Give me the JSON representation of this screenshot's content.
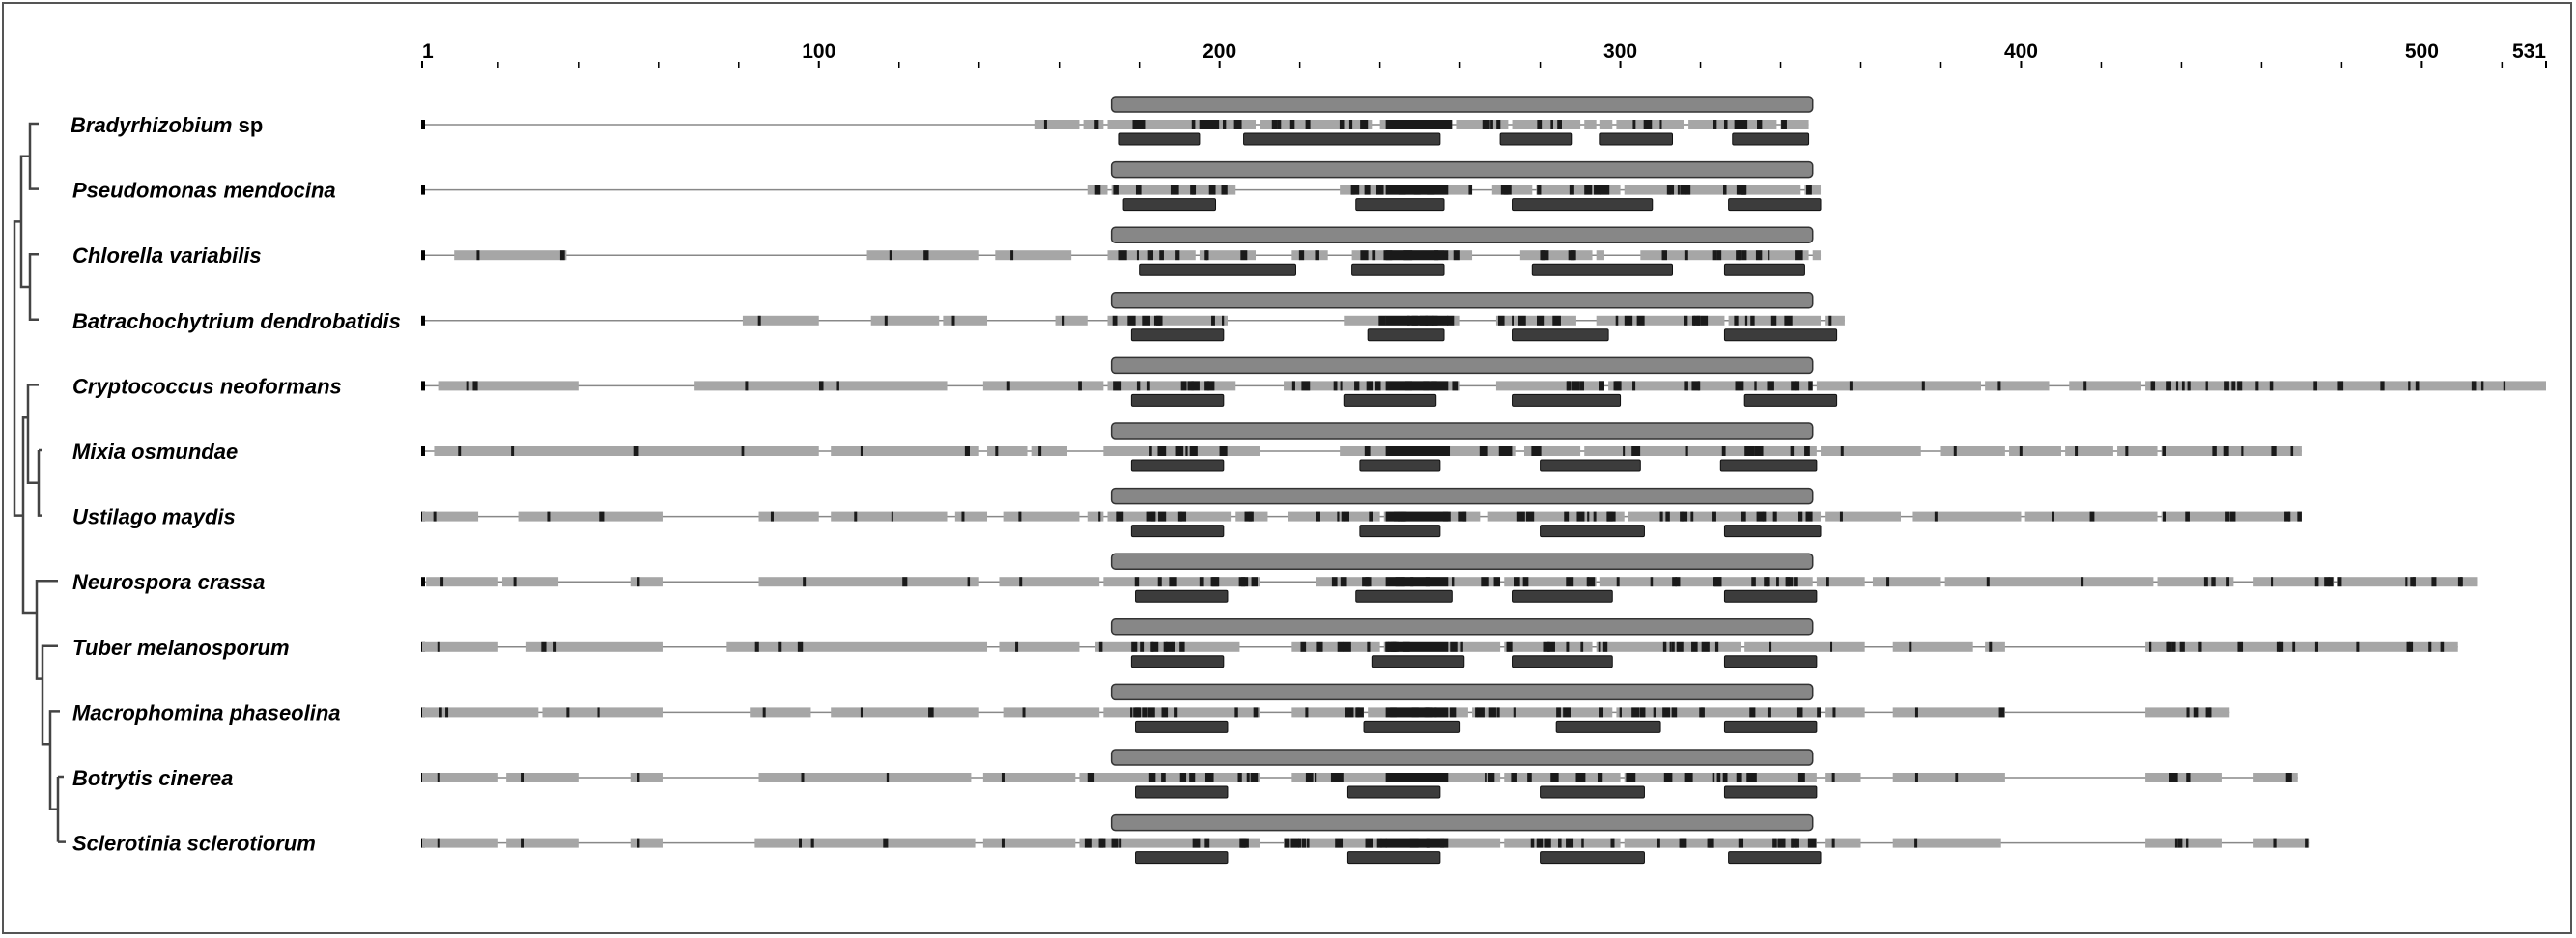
{
  "axis": {
    "ticks": [
      {
        "pos": 1,
        "label": "1"
      },
      {
        "pos": 100,
        "label": "100"
      },
      {
        "pos": 200,
        "label": "200"
      },
      {
        "pos": 300,
        "label": "300"
      },
      {
        "pos": 400,
        "label": "400"
      },
      {
        "pos": 500,
        "label": "500"
      },
      {
        "pos": 531,
        "label": "531"
      }
    ],
    "minor_ticks": [
      20,
      40,
      60,
      80,
      120,
      140,
      160,
      180,
      220,
      240,
      260,
      280,
      320,
      340,
      360,
      380,
      420,
      440,
      460,
      480,
      520
    ],
    "max": 531
  },
  "colors": {
    "segment": "#a6a6a6",
    "block": "#1a1a1a",
    "domain": "#878787",
    "motif": "#3c3c3c",
    "line": "#888888",
    "tree": "#444444"
  },
  "species": [
    {
      "genus": "Bradyrhizobium",
      "epithet": "sp",
      "length": 347,
      "segments": [
        [
          154,
          165
        ],
        [
          166,
          171
        ],
        [
          172,
          209
        ],
        [
          210,
          238
        ],
        [
          240,
          258
        ],
        [
          259,
          272
        ],
        [
          273,
          290
        ],
        [
          291,
          294
        ],
        [
          295,
          298
        ],
        [
          299,
          316
        ],
        [
          317,
          339
        ],
        [
          340,
          347
        ]
      ],
      "motifs": [
        [
          175,
          195
        ],
        [
          206,
          255
        ],
        [
          270,
          288
        ],
        [
          295,
          313
        ],
        [
          328,
          347
        ]
      ]
    },
    {
      "genus": "Pseudomonas",
      "epithet": "mendocina",
      "length": 350,
      "segments": [
        [
          167,
          172
        ],
        [
          173,
          204
        ],
        [
          230,
          263
        ],
        [
          268,
          278
        ],
        [
          279,
          300
        ],
        [
          301,
          345
        ],
        [
          346,
          350
        ]
      ],
      "motifs": [
        [
          176,
          199
        ],
        [
          234,
          256
        ],
        [
          273,
          308
        ],
        [
          327,
          350
        ]
      ]
    },
    {
      "genus": "Chlorella",
      "epithet": "variabilis",
      "length": 350,
      "segments": [
        [
          9,
          37
        ],
        [
          112,
          140
        ],
        [
          144,
          163
        ],
        [
          172,
          194
        ],
        [
          195,
          209
        ],
        [
          218,
          227
        ],
        [
          233,
          256
        ],
        [
          257,
          263
        ],
        [
          275,
          293
        ],
        [
          294,
          296
        ],
        [
          305,
          347
        ],
        [
          348,
          350
        ]
      ],
      "motifs": [
        [
          180,
          219
        ],
        [
          233,
          256
        ],
        [
          278,
          313
        ],
        [
          326,
          346
        ]
      ]
    },
    {
      "genus": "Batrachochytrium",
      "epithet": "dendrobatidis",
      "length": 356,
      "segments": [
        [
          81,
          100
        ],
        [
          113,
          130
        ],
        [
          131,
          142
        ],
        [
          159,
          167
        ],
        [
          172,
          202
        ],
        [
          231,
          260
        ],
        [
          269,
          289
        ],
        [
          294,
          326
        ],
        [
          327,
          350
        ],
        [
          351,
          356
        ]
      ],
      "motifs": [
        [
          178,
          201
        ],
        [
          237,
          256
        ],
        [
          273,
          297
        ],
        [
          326,
          354
        ]
      ]
    },
    {
      "genus": "Cryptococcus",
      "epithet": "neoformans",
      "length": 531,
      "segments": [
        [
          5,
          40
        ],
        [
          69,
          132
        ],
        [
          141,
          171
        ],
        [
          172,
          204
        ],
        [
          216,
          260
        ],
        [
          269,
          296
        ],
        [
          297,
          348
        ],
        [
          349,
          390
        ],
        [
          391,
          407
        ],
        [
          412,
          430
        ],
        [
          431,
          531
        ]
      ],
      "motifs": [
        [
          178,
          201
        ],
        [
          231,
          254
        ],
        [
          273,
          300
        ],
        [
          331,
          354
        ]
      ]
    },
    {
      "genus": "Mixia",
      "epithet": "osmundae",
      "length": 470,
      "segments": [
        [
          4,
          100
        ],
        [
          103,
          140
        ],
        [
          142,
          152
        ],
        [
          153,
          162
        ],
        [
          171,
          210
        ],
        [
          230,
          274
        ],
        [
          276,
          290
        ],
        [
          291,
          349
        ],
        [
          350,
          375
        ],
        [
          380,
          396
        ],
        [
          397,
          410
        ],
        [
          411,
          423
        ],
        [
          424,
          434
        ],
        [
          435,
          470
        ]
      ],
      "motifs": [
        [
          178,
          201
        ],
        [
          235,
          255
        ],
        [
          280,
          305
        ],
        [
          325,
          349
        ]
      ]
    },
    {
      "genus": "Ustilago",
      "epithet": "maydis",
      "length": 470,
      "segments": [
        [
          1,
          15
        ],
        [
          25,
          61
        ],
        [
          85,
          100
        ],
        [
          103,
          132
        ],
        [
          134,
          142
        ],
        [
          146,
          165
        ],
        [
          167,
          171
        ],
        [
          172,
          203
        ],
        [
          204,
          212
        ],
        [
          217,
          240
        ],
        [
          241,
          265
        ],
        [
          267,
          301
        ],
        [
          302,
          350
        ],
        [
          351,
          370
        ],
        [
          373,
          400
        ],
        [
          401,
          434
        ],
        [
          435,
          470
        ]
      ],
      "motifs": [
        [
          178,
          201
        ],
        [
          235,
          255
        ],
        [
          280,
          306
        ],
        [
          326,
          350
        ]
      ]
    },
    {
      "genus": "Neurospora",
      "epithet": "crassa",
      "length": 514,
      "segments": [
        [
          2,
          20
        ],
        [
          21,
          35
        ],
        [
          53,
          61
        ],
        [
          85,
          140
        ],
        [
          145,
          170
        ],
        [
          171,
          210
        ],
        [
          224,
          270
        ],
        [
          271,
          294
        ],
        [
          295,
          348
        ],
        [
          349,
          361
        ],
        [
          363,
          380
        ],
        [
          381,
          433
        ],
        [
          434,
          453
        ],
        [
          458,
          478
        ],
        [
          479,
          514
        ]
      ],
      "motifs": [
        [
          179,
          202
        ],
        [
          234,
          258
        ],
        [
          273,
          298
        ],
        [
          326,
          349
        ]
      ]
    },
    {
      "genus": "Tuber",
      "epithet": "melanosporum",
      "length": 509,
      "segments": [
        [
          1,
          20
        ],
        [
          27,
          61
        ],
        [
          77,
          142
        ],
        [
          145,
          165
        ],
        [
          169,
          205
        ],
        [
          218,
          240
        ],
        [
          241,
          270
        ],
        [
          271,
          293
        ],
        [
          294,
          330
        ],
        [
          331,
          361
        ],
        [
          368,
          388
        ],
        [
          391,
          396
        ],
        [
          431,
          509
        ]
      ],
      "motifs": [
        [
          178,
          201
        ],
        [
          238,
          261
        ],
        [
          273,
          298
        ],
        [
          326,
          349
        ]
      ]
    },
    {
      "genus": "Macrophomina",
      "epithet": "phaseolina",
      "length": 452,
      "segments": [
        [
          1,
          30
        ],
        [
          31,
          61
        ],
        [
          83,
          98
        ],
        [
          103,
          140
        ],
        [
          146,
          170
        ],
        [
          171,
          210
        ],
        [
          218,
          236
        ],
        [
          237,
          262
        ],
        [
          263,
          298
        ],
        [
          299,
          350
        ],
        [
          351,
          361
        ],
        [
          368,
          396
        ],
        [
          431,
          452
        ]
      ],
      "motifs": [
        [
          179,
          202
        ],
        [
          236,
          260
        ],
        [
          284,
          310
        ],
        [
          326,
          349
        ]
      ]
    },
    {
      "genus": "Botrytis",
      "epithet": "cinerea",
      "length": 469,
      "segments": [
        [
          1,
          20
        ],
        [
          22,
          40
        ],
        [
          53,
          61
        ],
        [
          85,
          138
        ],
        [
          141,
          164
        ],
        [
          165,
          210
        ],
        [
          218,
          270
        ],
        [
          271,
          300
        ],
        [
          301,
          349
        ],
        [
          351,
          360
        ],
        [
          368,
          396
        ],
        [
          431,
          450
        ],
        [
          458,
          469
        ]
      ],
      "motifs": [
        [
          179,
          202
        ],
        [
          232,
          255
        ],
        [
          280,
          306
        ],
        [
          326,
          349
        ]
      ]
    },
    {
      "genus": "Sclerotinia",
      "epithet": "sclerotiorum",
      "length": 472,
      "segments": [
        [
          1,
          20
        ],
        [
          22,
          40
        ],
        [
          53,
          61
        ],
        [
          84,
          139
        ],
        [
          141,
          164
        ],
        [
          165,
          210
        ],
        [
          216,
          270
        ],
        [
          271,
          300
        ],
        [
          301,
          349
        ],
        [
          351,
          360
        ],
        [
          368,
          395
        ],
        [
          431,
          450
        ],
        [
          458,
          472
        ]
      ],
      "motifs": [
        [
          179,
          202
        ],
        [
          232,
          255
        ],
        [
          280,
          306
        ],
        [
          327,
          350
        ]
      ]
    }
  ],
  "domain": {
    "start": 173,
    "end": 348
  }
}
